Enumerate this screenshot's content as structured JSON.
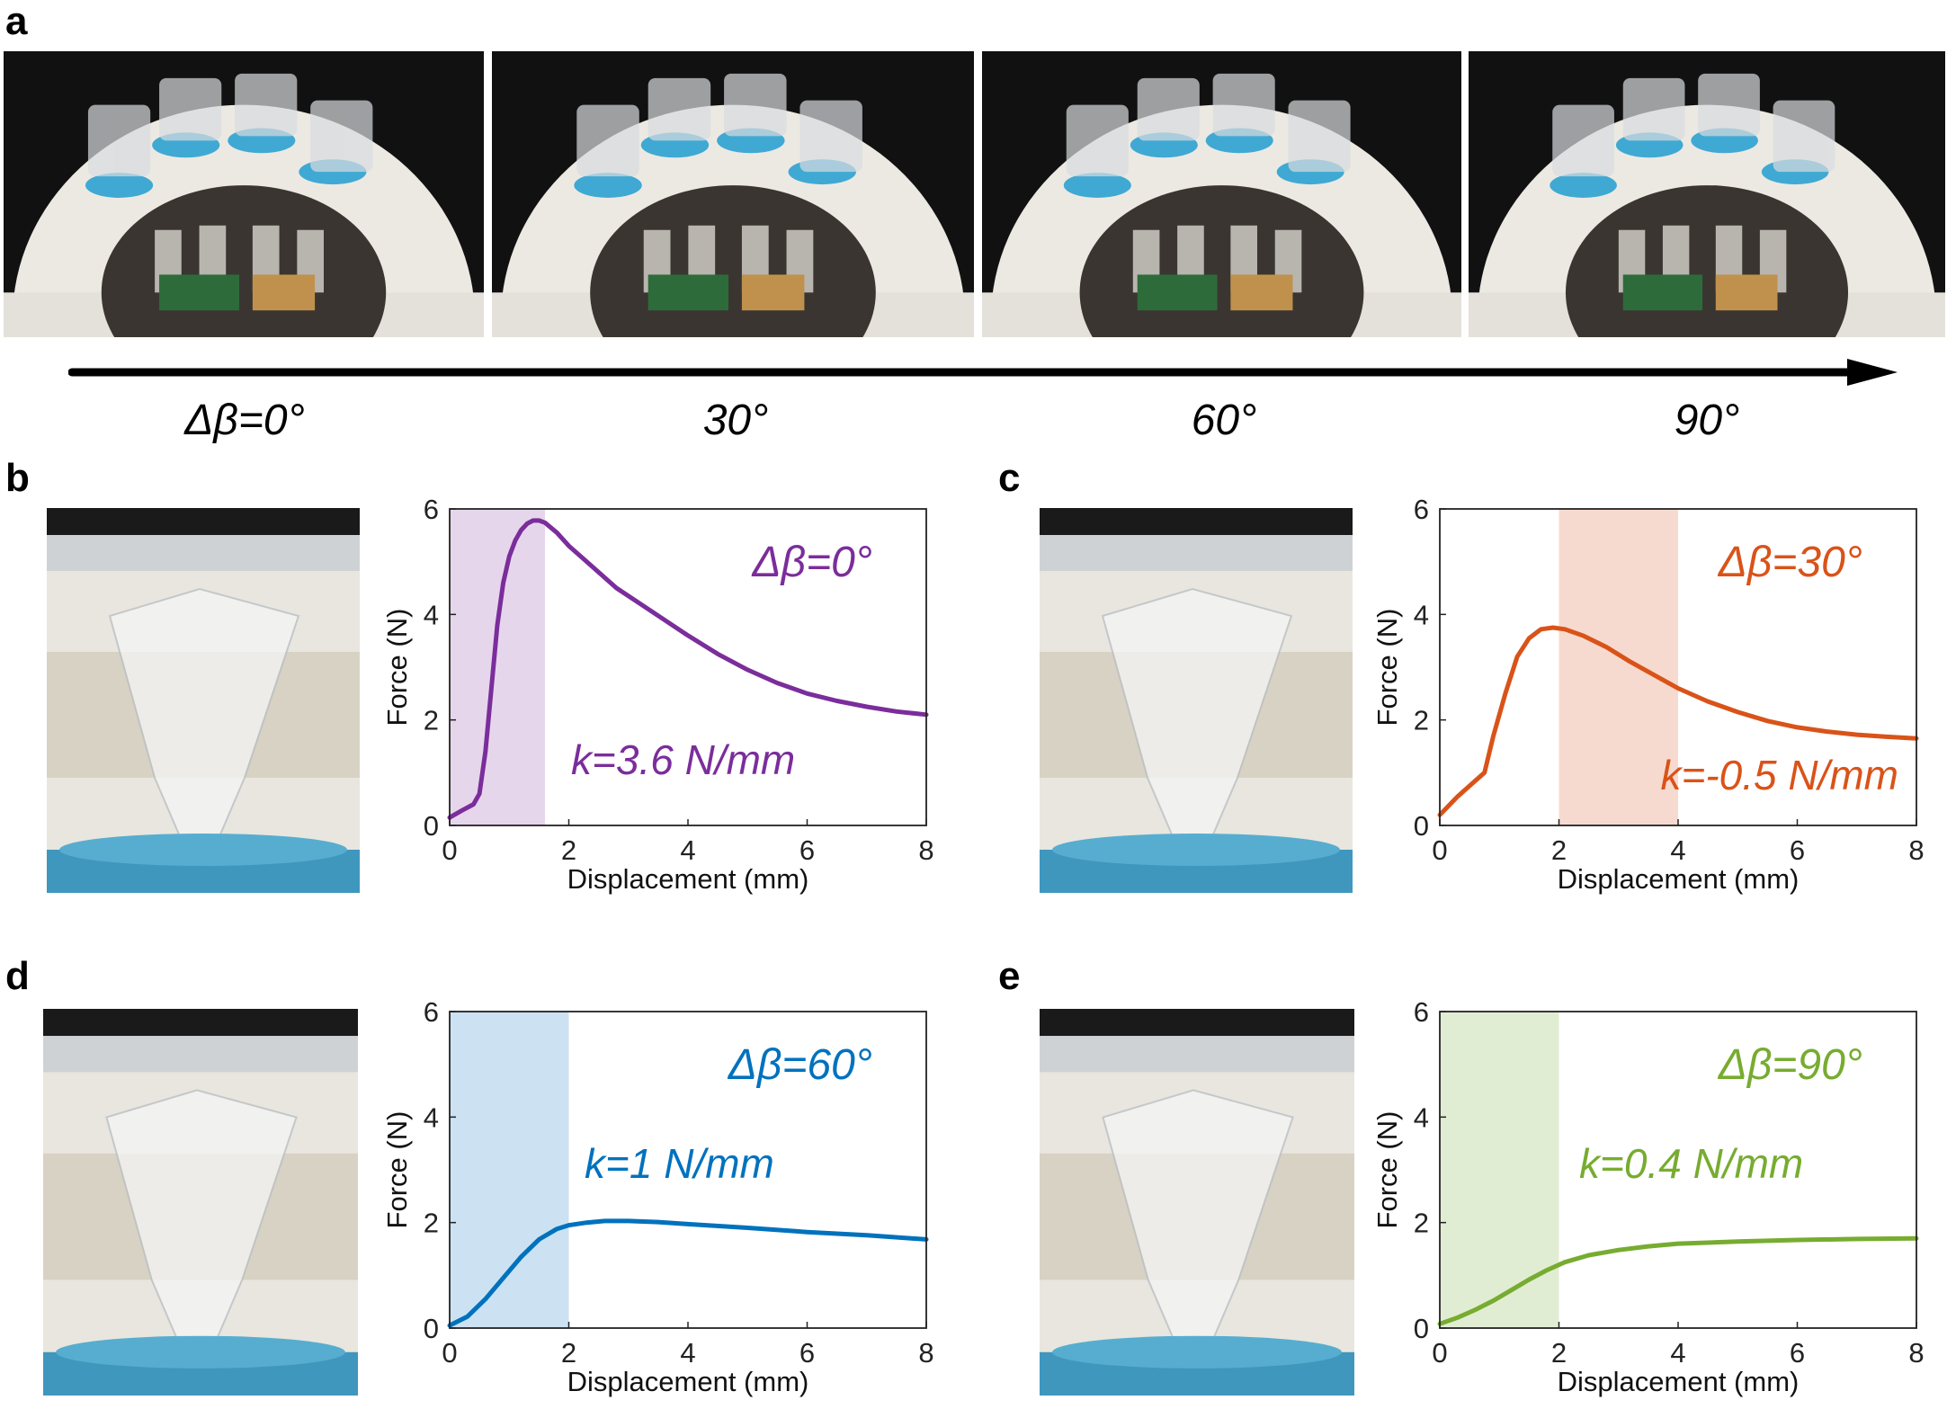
{
  "panel_letters": {
    "a": "a",
    "b": "b",
    "c": "c",
    "d": "d",
    "e": "e"
  },
  "angle_labels": [
    "Δβ=0°",
    "30°",
    "60°",
    "90°"
  ],
  "colors": {
    "purple": "#7B2D9B",
    "orange": "#D95319",
    "blue": "#0072BD",
    "green": "#77AC30"
  },
  "chart_data": [
    {
      "id": "b",
      "type": "line",
      "xlabel": "Displacement (mm)",
      "ylabel": "Force (N)",
      "xlim": [
        0,
        8
      ],
      "ylim": [
        0,
        6
      ],
      "xticks": [
        0,
        2,
        4,
        6,
        8
      ],
      "yticks": [
        0,
        2,
        4,
        6
      ],
      "label": "Δβ=0°",
      "k_label": "k=3.6 N/mm",
      "color": "#7B2D9B",
      "shade_color": "#E6D6EC",
      "shaded_range": [
        0,
        1.6
      ],
      "x": [
        0,
        0.2,
        0.4,
        0.5,
        0.6,
        0.7,
        0.8,
        0.9,
        1.0,
        1.1,
        1.2,
        1.3,
        1.4,
        1.5,
        1.6,
        1.8,
        2.0,
        2.4,
        2.8,
        3.2,
        3.6,
        4.0,
        4.5,
        5.0,
        5.5,
        6.0,
        6.5,
        7.0,
        7.5,
        8.0
      ],
      "y": [
        0.15,
        0.28,
        0.4,
        0.6,
        1.4,
        2.6,
        3.8,
        4.6,
        5.1,
        5.4,
        5.6,
        5.72,
        5.78,
        5.78,
        5.74,
        5.55,
        5.3,
        4.9,
        4.5,
        4.2,
        3.9,
        3.6,
        3.25,
        2.95,
        2.7,
        2.5,
        2.36,
        2.25,
        2.16,
        2.1
      ]
    },
    {
      "id": "c",
      "type": "line",
      "xlabel": "Displacement (mm)",
      "ylabel": "Force (N)",
      "xlim": [
        0,
        8
      ],
      "ylim": [
        0,
        6
      ],
      "xticks": [
        0,
        2,
        4,
        6,
        8
      ],
      "yticks": [
        0,
        2,
        4,
        6
      ],
      "label": "Δβ=30°",
      "k_label": "k=-0.5 N/mm",
      "color": "#D95319",
      "shade_color": "#F7DACF",
      "shaded_range": [
        2,
        4
      ],
      "x": [
        0,
        0.3,
        0.5,
        0.75,
        0.9,
        1.1,
        1.3,
        1.5,
        1.7,
        1.9,
        2.1,
        2.4,
        2.8,
        3.2,
        3.6,
        4.0,
        4.5,
        5.0,
        5.5,
        6.0,
        6.5,
        7.0,
        7.5,
        8.0
      ],
      "y": [
        0.2,
        0.55,
        0.75,
        1.0,
        1.7,
        2.5,
        3.2,
        3.55,
        3.72,
        3.75,
        3.72,
        3.6,
        3.38,
        3.1,
        2.85,
        2.6,
        2.35,
        2.15,
        1.98,
        1.86,
        1.78,
        1.72,
        1.68,
        1.65
      ]
    },
    {
      "id": "d",
      "type": "line",
      "xlabel": "Displacement (mm)",
      "ylabel": "Force (N)",
      "xlim": [
        0,
        8
      ],
      "ylim": [
        0,
        6
      ],
      "xticks": [
        0,
        2,
        4,
        6,
        8
      ],
      "yticks": [
        0,
        2,
        4,
        6
      ],
      "label": "Δβ=60°",
      "k_label": "k=1 N/mm",
      "color": "#0072BD",
      "shade_color": "#CCE2F3",
      "shaded_range": [
        0,
        2
      ],
      "x": [
        0,
        0.3,
        0.6,
        0.9,
        1.2,
        1.5,
        1.8,
        2.0,
        2.3,
        2.6,
        3.0,
        3.5,
        4.0,
        5.0,
        6.0,
        7.0,
        8.0
      ],
      "y": [
        0.05,
        0.22,
        0.55,
        0.95,
        1.35,
        1.68,
        1.88,
        1.95,
        2.0,
        2.03,
        2.03,
        2.01,
        1.97,
        1.9,
        1.82,
        1.76,
        1.68
      ]
    },
    {
      "id": "e",
      "type": "line",
      "xlabel": "Displacement (mm)",
      "ylabel": "Force (N)",
      "xlim": [
        0,
        8
      ],
      "ylim": [
        0,
        6
      ],
      "xticks": [
        0,
        2,
        4,
        6,
        8
      ],
      "yticks": [
        0,
        2,
        4,
        6
      ],
      "label": "Δβ=90°",
      "k_label": "k=0.4 N/mm",
      "color": "#77AC30",
      "shade_color": "#E1EDD3",
      "shaded_range": [
        0,
        2
      ],
      "x": [
        0,
        0.3,
        0.6,
        0.9,
        1.2,
        1.5,
        1.8,
        2.1,
        2.5,
        3.0,
        3.5,
        4.0,
        5.0,
        6.0,
        7.0,
        8.0
      ],
      "y": [
        0.08,
        0.2,
        0.35,
        0.52,
        0.72,
        0.92,
        1.1,
        1.25,
        1.38,
        1.48,
        1.55,
        1.6,
        1.64,
        1.67,
        1.69,
        1.7
      ]
    }
  ]
}
